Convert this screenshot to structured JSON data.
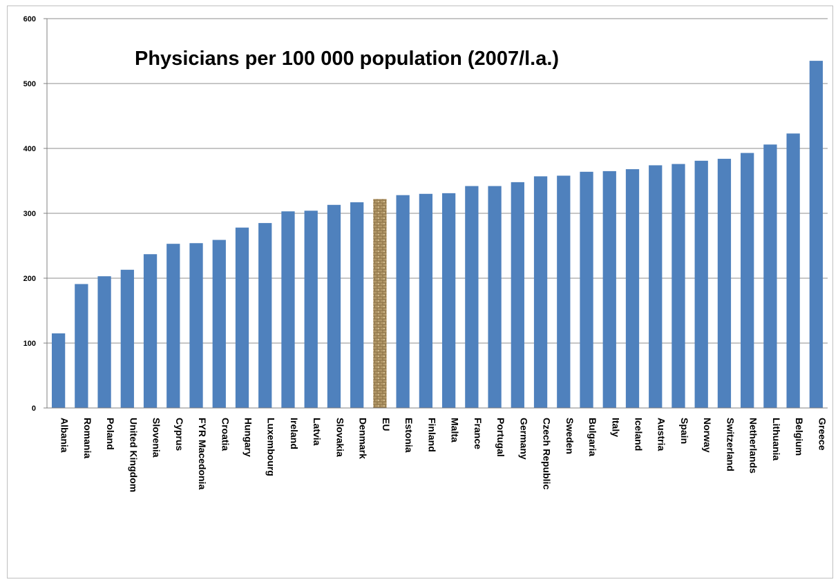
{
  "chart_data": {
    "type": "bar",
    "title": "Physicians per 100 000 population (2007/l.a.)",
    "xlabel": "",
    "ylabel": "",
    "ylim": [
      0,
      600
    ],
    "yticks": [
      0,
      100,
      200,
      300,
      400,
      500,
      600
    ],
    "grid": true,
    "legend": "none",
    "categories": [
      "Albania",
      "Romania",
      "Poland",
      "United Kingdom",
      "Slovenia",
      "Cyprus",
      "FYR Macedonia",
      "Croatia",
      "Hungary",
      "Luxembourg",
      "Ireland",
      "Latvia",
      "Slovakia",
      "Denmark",
      "EU",
      "Estonia",
      "Finland",
      "Malta",
      "France",
      "Portugal",
      "Germany",
      "Czech Republic",
      "Sweden",
      "Bulgaria",
      "Italy",
      "Iceland",
      "Austria",
      "Spain",
      "Norway",
      "Switzerland",
      "Netherlands",
      "Lithuania",
      "Belgium",
      "Greece"
    ],
    "values": [
      115,
      191,
      203,
      213,
      237,
      253,
      254,
      259,
      278,
      285,
      303,
      304,
      313,
      317,
      322,
      328,
      330,
      331,
      342,
      342,
      348,
      357,
      358,
      364,
      365,
      368,
      374,
      376,
      381,
      384,
      393,
      406,
      423,
      535
    ],
    "highlight": "EU",
    "colors": {
      "bar": "#4f81bd",
      "highlight": "#b39868",
      "grid": "#8c8c8c",
      "axis": "#808080"
    }
  }
}
